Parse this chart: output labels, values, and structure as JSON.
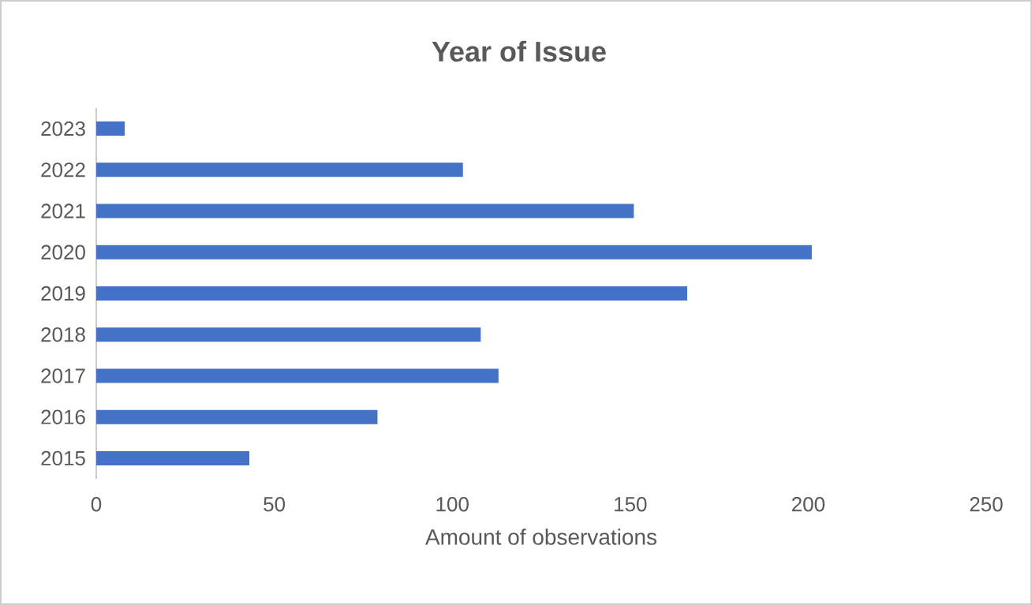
{
  "chart_data": {
    "type": "bar",
    "orientation": "horizontal",
    "title": "Year of Issue",
    "xlabel": "Amount of observations",
    "categories": [
      "2023",
      "2022",
      "2021",
      "2020",
      "2019",
      "2018",
      "2017",
      "2016",
      "2015"
    ],
    "values": [
      8,
      103,
      151,
      201,
      166,
      108,
      113,
      79,
      43
    ],
    "color": "#4472c4",
    "xlim": [
      0,
      250
    ],
    "xticks": [
      0,
      50,
      100,
      150,
      200,
      250
    ]
  }
}
